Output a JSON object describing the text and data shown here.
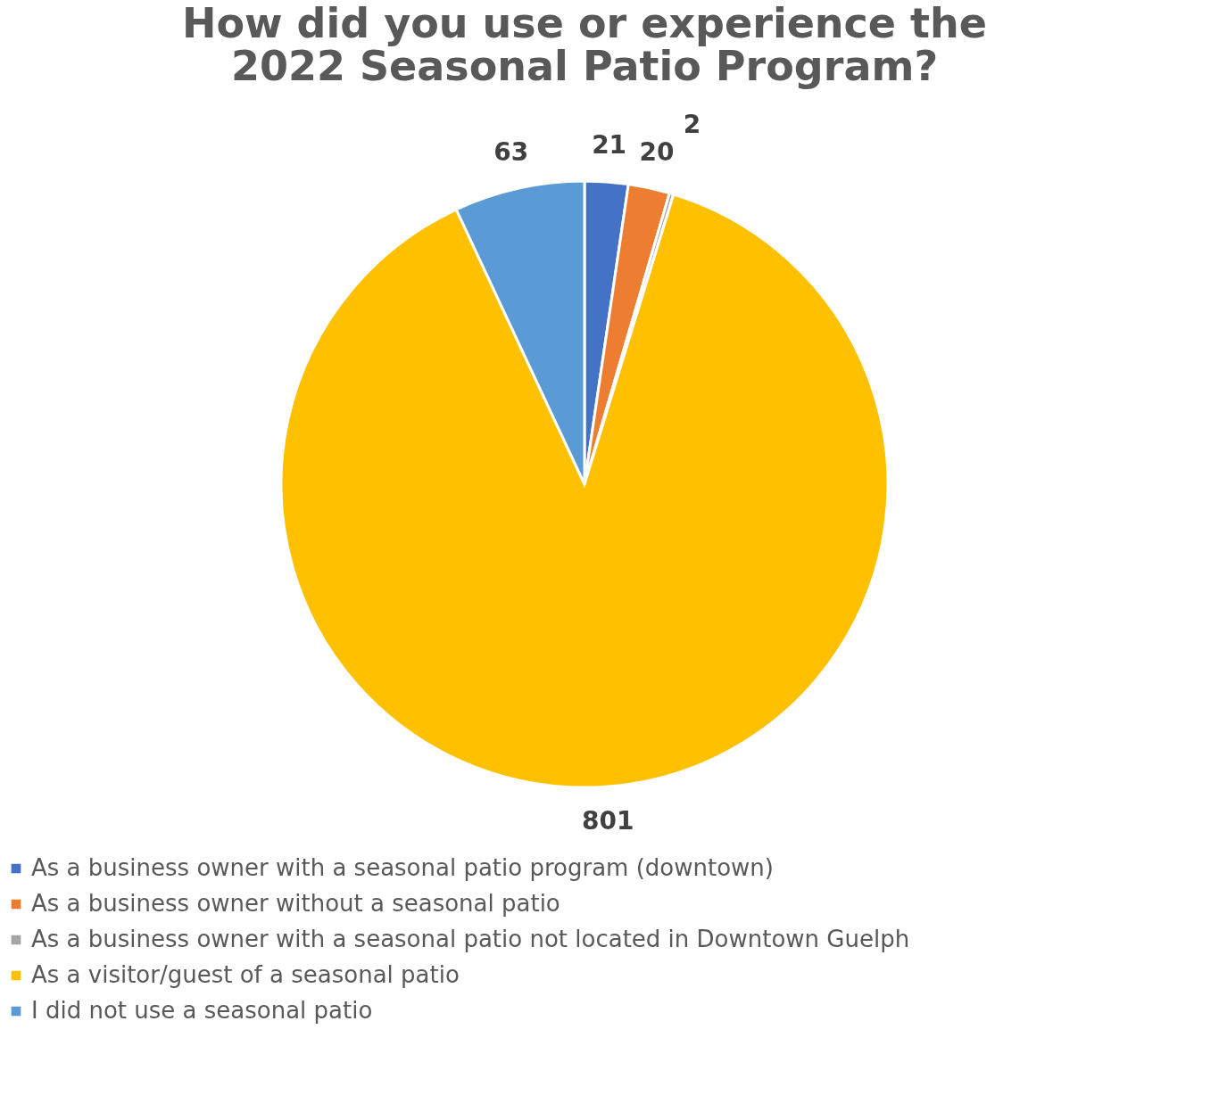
{
  "chart_data": {
    "type": "pie",
    "title": [
      "How did you use or experience the",
      "2022 Seasonal Patio Program?"
    ],
    "categories": [
      "As a business owner with a seasonal patio program (downtown)",
      "As a business owner without a seasonal patio",
      "As a business owner with a seasonal patio not located in Downtown Guelph",
      "As a visitor/guest of a seasonal patio",
      "I did not use a seasonal patio"
    ],
    "values": [
      21,
      20,
      2,
      801,
      63
    ],
    "colors": [
      "#4472c4",
      "#ed7d31",
      "#a5a5a5",
      "#ffc000",
      "#5b9bd5"
    ],
    "data_labels": true,
    "legend": "bottom"
  }
}
